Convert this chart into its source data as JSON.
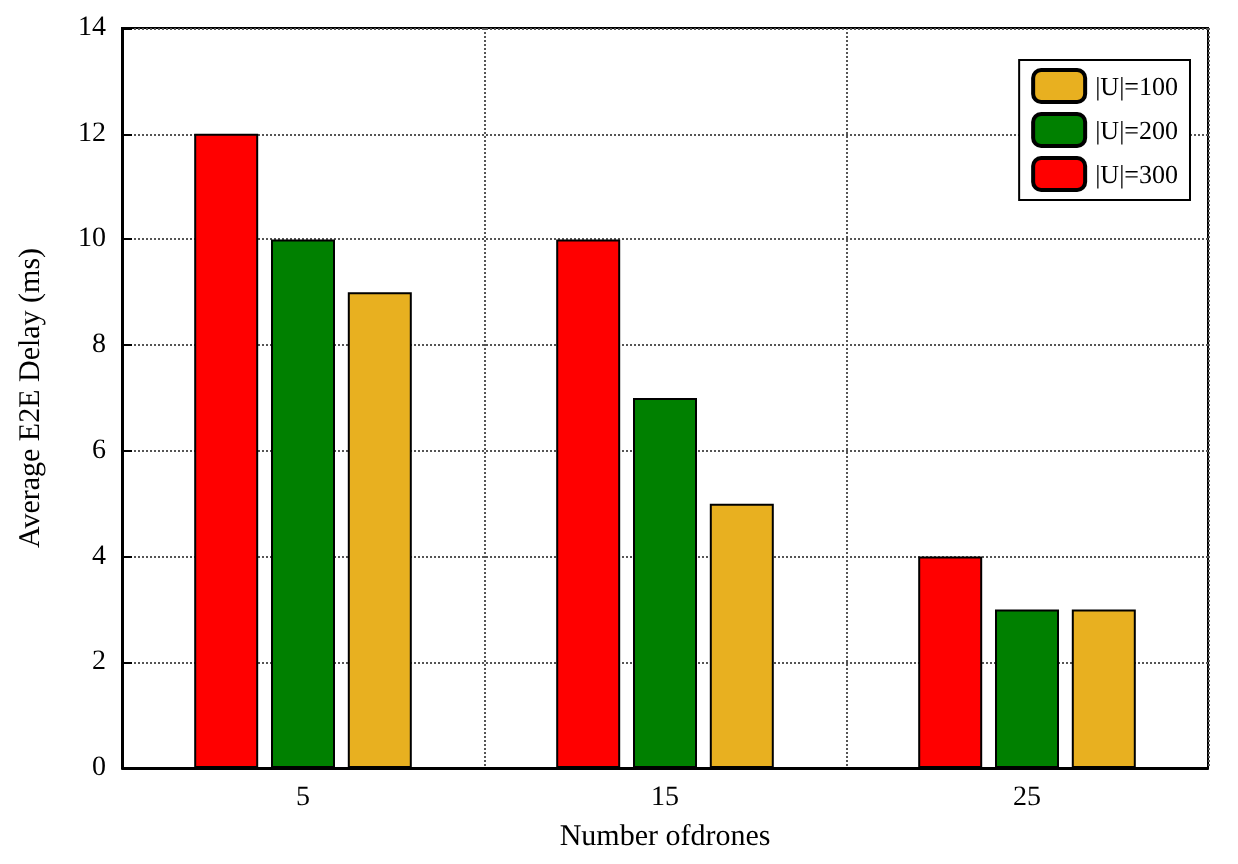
{
  "chart_data": {
    "type": "bar",
    "xlabel": "Number ofdrones",
    "ylabel": "Average E2E Delay (ms)",
    "categories": [
      "5",
      "15",
      "25"
    ],
    "series": [
      {
        "name": "|U|=300",
        "color": "#ff0000",
        "values": [
          12,
          10,
          4
        ]
      },
      {
        "name": "|U|=200",
        "color": "#008000",
        "values": [
          10,
          7,
          3
        ]
      },
      {
        "name": "|U|=100",
        "color": "#e8b020",
        "values": [
          9,
          5,
          3
        ]
      }
    ],
    "ylim": [
      0,
      14
    ],
    "yticks": [
      0,
      2,
      4,
      6,
      8,
      10,
      12,
      14
    ],
    "grid": true,
    "legend": "top right"
  }
}
